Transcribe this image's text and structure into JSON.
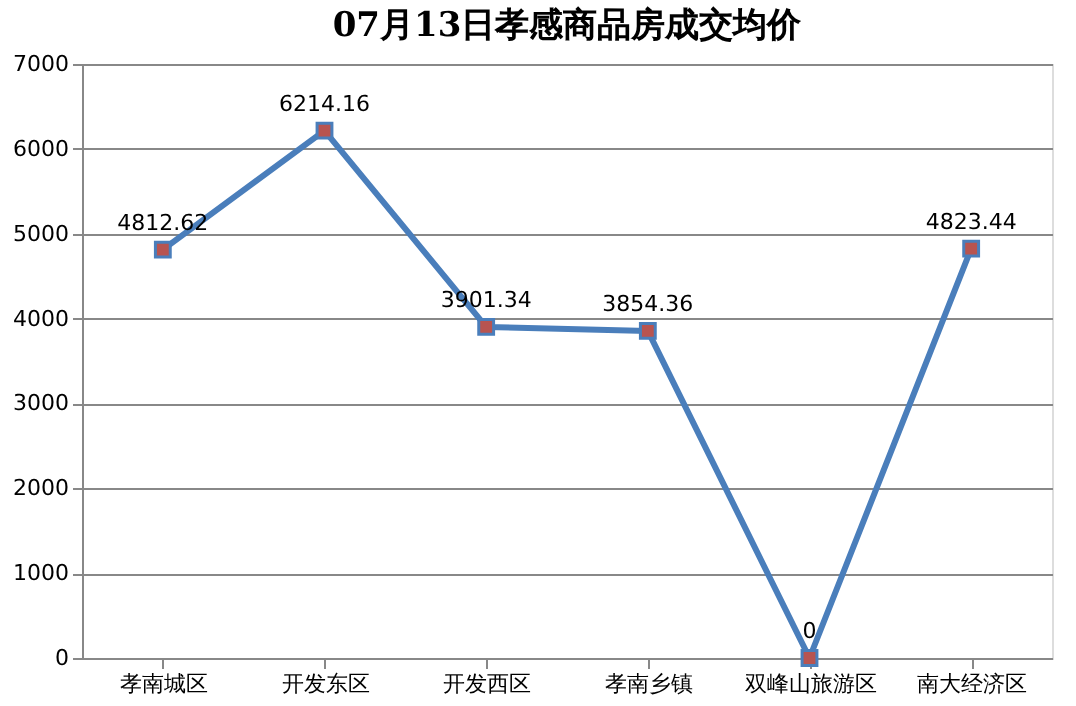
{
  "chart_data": {
    "type": "line",
    "title": "07月13日孝感商品房成交均价",
    "categories": [
      "孝南城区",
      "开发东区",
      "开发西区",
      "孝南乡镇",
      "双峰山旅游区",
      "南大经济区"
    ],
    "series": [
      {
        "color": "#4a7ebb",
        "values": [
          4812.62,
          6214.16,
          3901.34,
          3854.36,
          0,
          4823.44
        ]
      }
    ],
    "ylim": [
      0,
      7000
    ],
    "yticks": [
      0,
      1000,
      2000,
      3000,
      4000,
      5000,
      6000,
      7000
    ],
    "grid": "y",
    "marker": "square",
    "line_style": "solid",
    "data_labels": true
  }
}
